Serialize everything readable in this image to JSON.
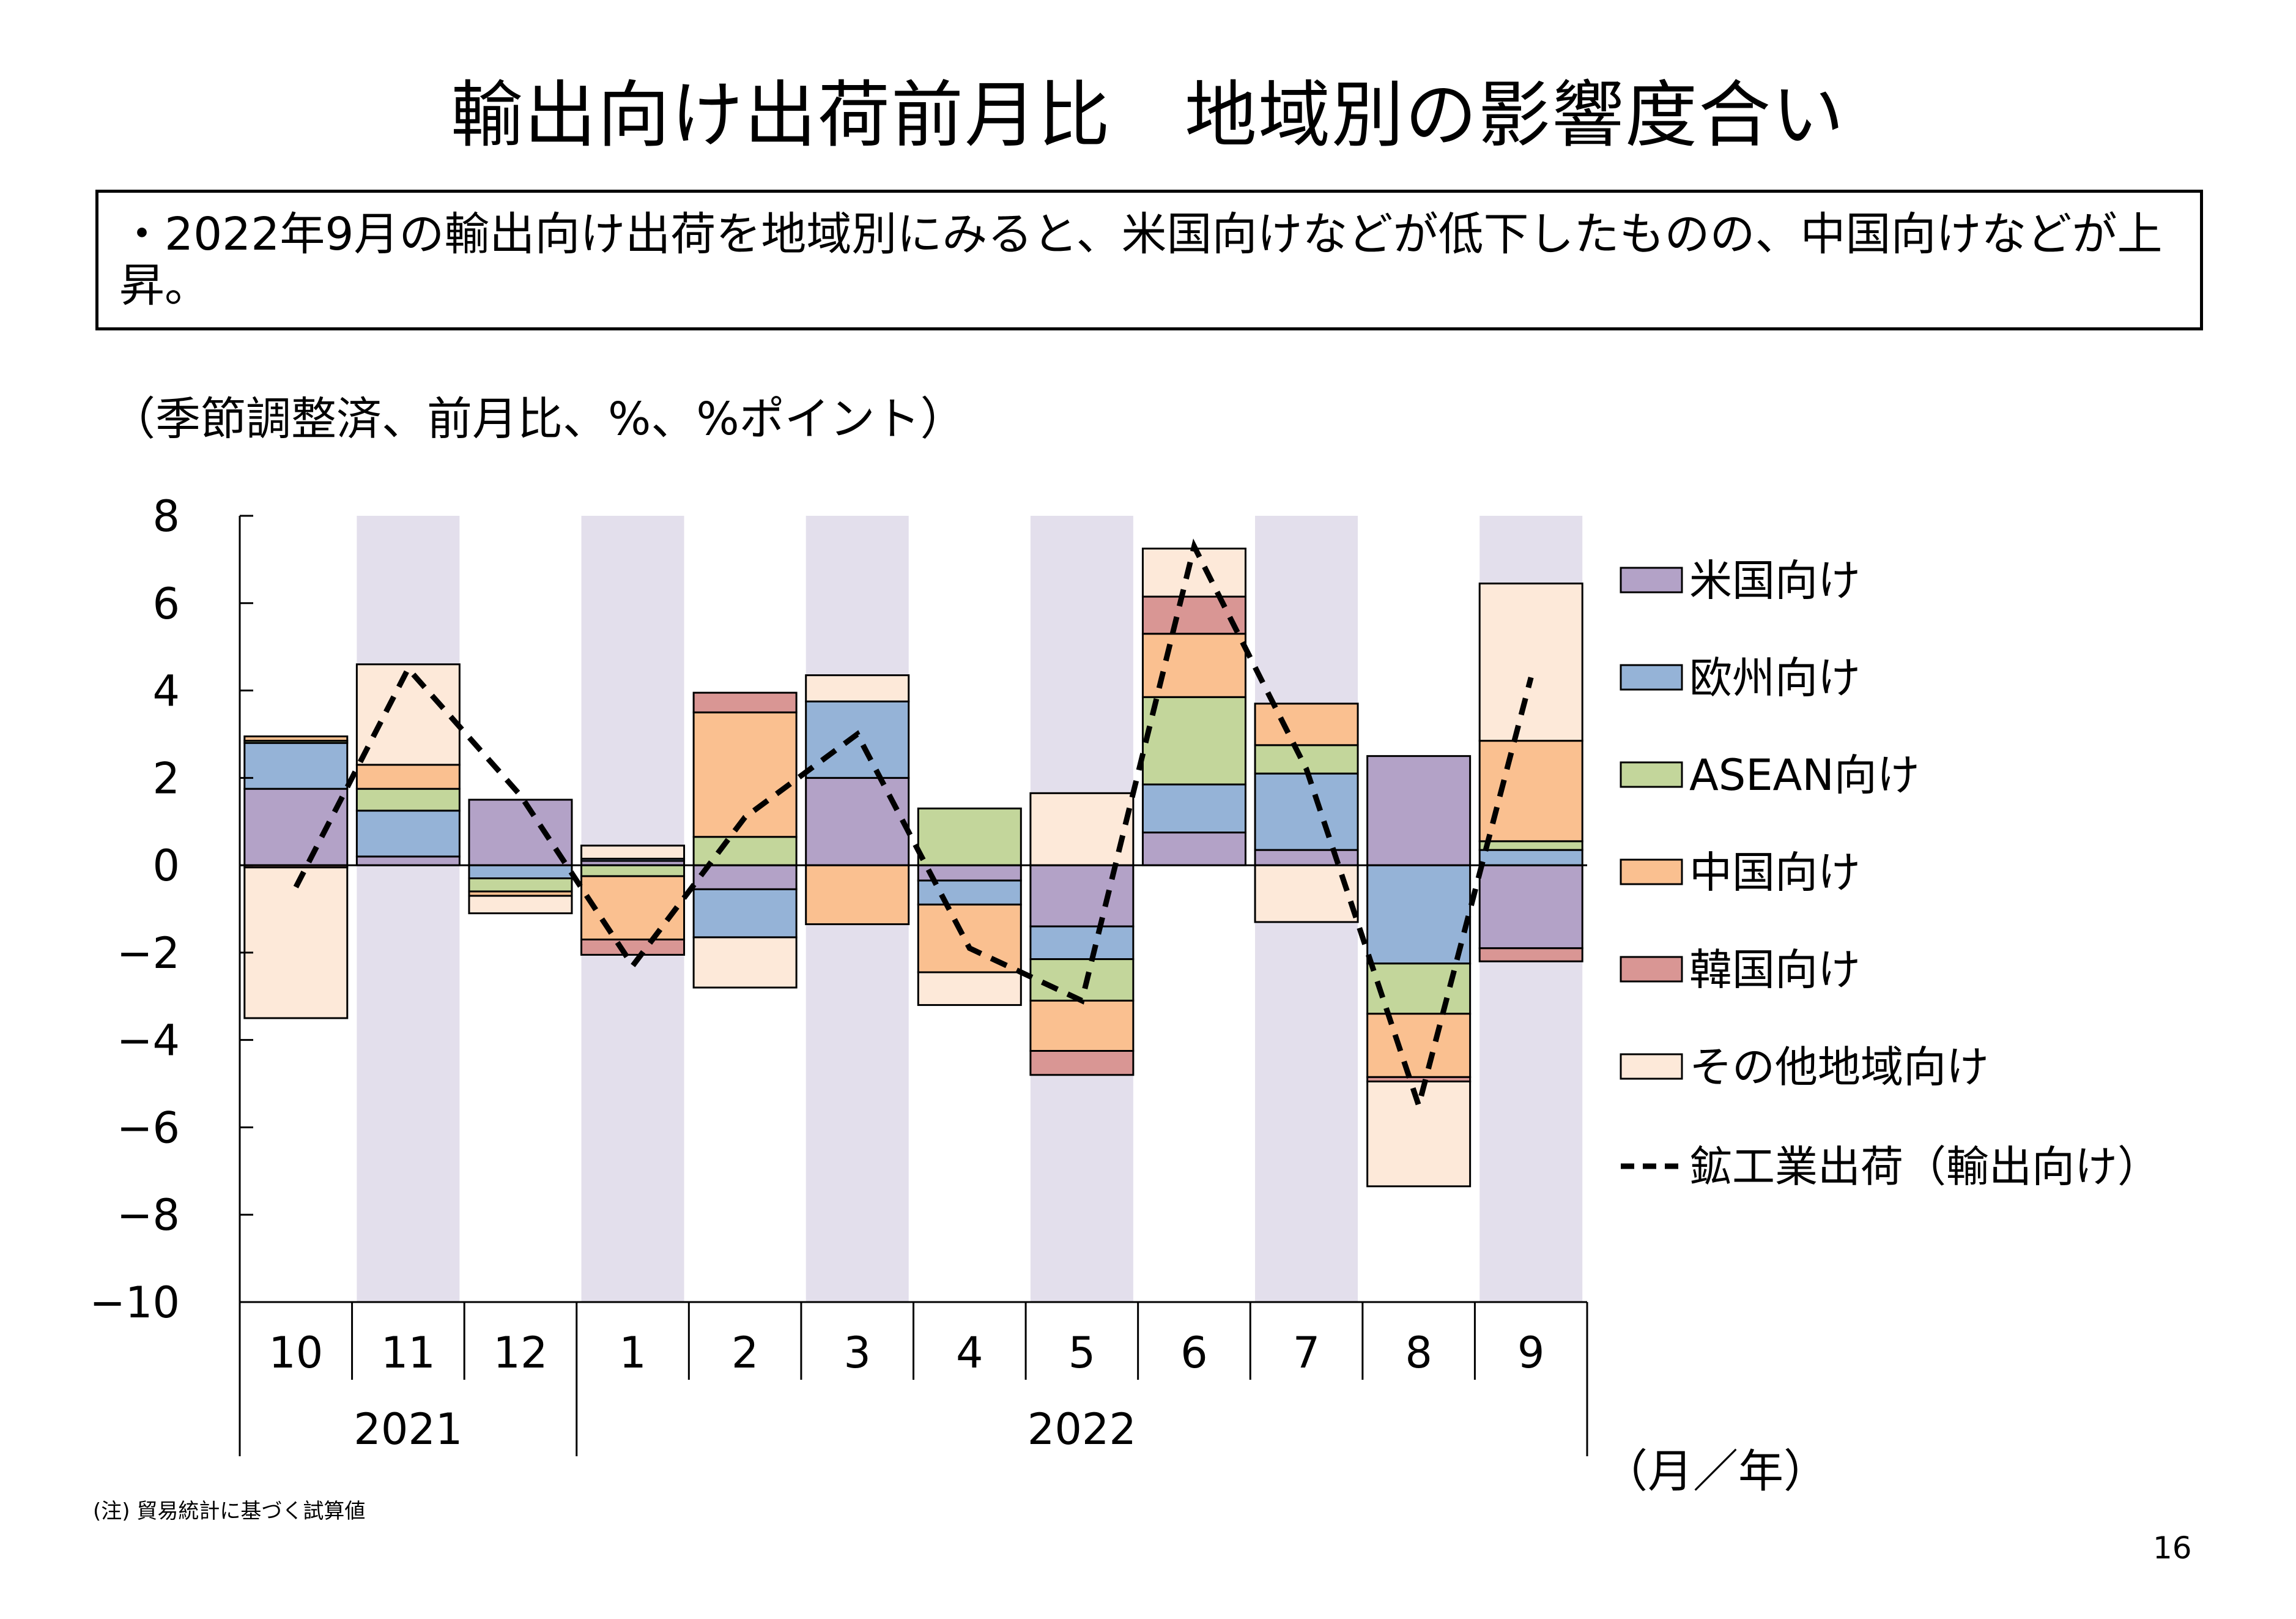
{
  "page": {
    "title": "輸出向け出荷前月比　地域別の影響度合い",
    "summary": "・2022年9月の輸出向け出荷を地域別にみると、米国向けなどが低下したものの、中国向けなどが上昇。",
    "unit_note": "（季節調整済、前月比、%、%ポイント）",
    "axis_unit": "（月／年）",
    "footnote": "(注) 貿易統計に基づく試算値",
    "page_number": "16"
  },
  "chart_data": {
    "type": "bar",
    "stacked": true,
    "categories": [
      "10",
      "11",
      "12",
      "1",
      "2",
      "3",
      "4",
      "5",
      "6",
      "7",
      "8",
      "9"
    ],
    "year_labels": [
      {
        "label": "2021",
        "from": 0,
        "to": 2
      },
      {
        "label": "2022",
        "from": 3,
        "to": 11
      }
    ],
    "shaded_categories": [
      1,
      3,
      5,
      7,
      9,
      11
    ],
    "ylim": [
      -10,
      8
    ],
    "yticks": [
      8,
      6,
      4,
      2,
      0,
      -2,
      -4,
      -6,
      -8,
      -10
    ],
    "ytick_labels": [
      "8",
      "6",
      "4",
      "2",
      "0",
      "−2",
      "−4",
      "−6",
      "−8",
      "−10"
    ],
    "colors": {
      "us": "#b3a2c7",
      "eu": "#95b3d7",
      "asean": "#c3d69b",
      "china": "#fac090",
      "korea": "#d99694",
      "other": "#fde9d9",
      "shade": "#e3dfec",
      "line": "#000000",
      "bar_edge": "#000000"
    },
    "series": [
      {
        "key": "us",
        "name": "米国向け",
        "values": [
          1.75,
          0.2,
          1.5,
          0.1,
          -0.55,
          2.0,
          -0.35,
          -1.4,
          0.75,
          0.35,
          2.5,
          -1.9
        ]
      },
      {
        "key": "eu",
        "name": "欧州向け",
        "values": [
          1.05,
          1.05,
          -0.3,
          0.05,
          -1.1,
          1.75,
          -0.55,
          -0.75,
          1.1,
          1.75,
          -2.25,
          0.35
        ]
      },
      {
        "key": "asean",
        "name": "ASEAN向け",
        "values": [
          0.05,
          0.5,
          -0.3,
          -0.25,
          0.65,
          0.0,
          1.3,
          -0.95,
          2.0,
          0.65,
          -1.15,
          0.2
        ]
      },
      {
        "key": "china",
        "name": "中国向け",
        "values": [
          0.1,
          0.55,
          -0.1,
          -1.45,
          2.85,
          -1.35,
          -1.55,
          -1.15,
          1.45,
          0.95,
          -1.45,
          2.3
        ]
      },
      {
        "key": "korea",
        "name": "韓国向け",
        "values": [
          -0.05,
          0.0,
          0.0,
          -0.35,
          0.45,
          0.0,
          0.0,
          -0.55,
          0.85,
          0.0,
          -0.1,
          -0.3
        ]
      },
      {
        "key": "other",
        "name": "その他地域向け",
        "values": [
          -3.45,
          2.3,
          -0.4,
          0.3,
          -1.15,
          0.6,
          -0.75,
          1.65,
          1.1,
          -1.3,
          -2.4,
          3.6
        ]
      }
    ],
    "line": {
      "name": "鉱工業出荷（輸出向け）",
      "style": "dashed",
      "values": [
        -0.5,
        4.5,
        1.6,
        -2.3,
        1.1,
        3.0,
        -1.9,
        -3.1,
        7.3,
        2.2,
        -5.5,
        4.3
      ]
    },
    "legend_position": "right"
  }
}
